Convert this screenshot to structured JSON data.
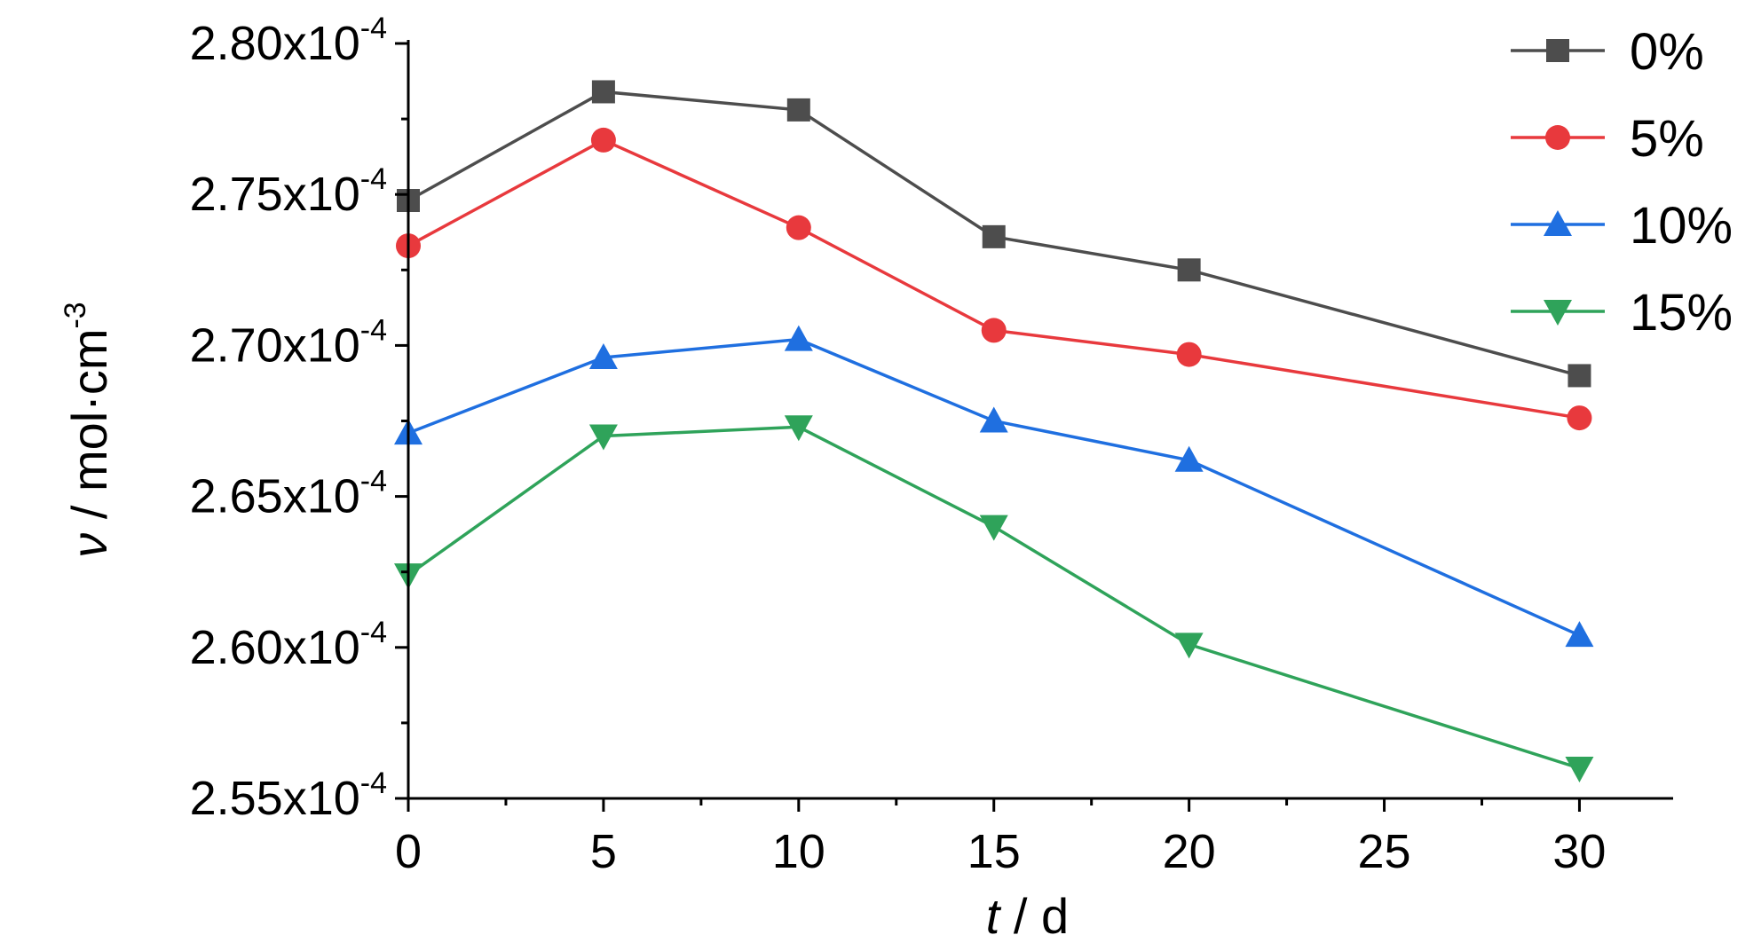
{
  "chart_data": {
    "type": "line",
    "x": [
      0,
      5,
      10,
      15,
      20,
      30
    ],
    "xlim": [
      0,
      32.4
    ],
    "ylim": [
      0.000255,
      0.00028
    ],
    "xticks": [
      0,
      5,
      10,
      15,
      20,
      25,
      30
    ],
    "xtick_labels": [
      "0",
      "5",
      "10",
      "15",
      "20",
      "25",
      "30"
    ],
    "yticks": [
      0.000255,
      0.00026,
      0.000265,
      0.00027,
      0.000275,
      0.00028
    ],
    "ytick_labels": [
      {
        "mantissa": "2.55x10",
        "exponent": "-4"
      },
      {
        "mantissa": "2.60x10",
        "exponent": "-4"
      },
      {
        "mantissa": "2.65x10",
        "exponent": "-4"
      },
      {
        "mantissa": "2.70x10",
        "exponent": "-4"
      },
      {
        "mantissa": "2.75x10",
        "exponent": "-4"
      },
      {
        "mantissa": "2.80x10",
        "exponent": "-4"
      }
    ],
    "xlabel": {
      "var": "t",
      "rest": " / d"
    },
    "ylabel": {
      "var": "ν",
      "rest": " / mol·cm",
      "exponent": "-3"
    },
    "grid": false,
    "legend": {
      "position": "top-right"
    },
    "series": [
      {
        "name": "0%",
        "color": "#4d4d4d",
        "marker": "square",
        "values": [
          0.0002748,
          0.0002784,
          0.0002778,
          0.0002736,
          0.0002725,
          0.000269
        ]
      },
      {
        "name": "5%",
        "color": "#e8393d",
        "marker": "circle",
        "values": [
          0.0002733,
          0.0002768,
          0.0002739,
          0.0002705,
          0.0002697,
          0.0002676
        ]
      },
      {
        "name": "10%",
        "color": "#1f6fe0",
        "marker": "triangle-up",
        "values": [
          0.0002671,
          0.0002696,
          0.0002702,
          0.0002675,
          0.0002662,
          0.0002604
        ]
      },
      {
        "name": "15%",
        "color": "#2fa35a",
        "marker": "triangle-down",
        "values": [
          0.0002624,
          0.000267,
          0.0002673,
          0.000264,
          0.0002601,
          0.000256
        ]
      }
    ]
  }
}
